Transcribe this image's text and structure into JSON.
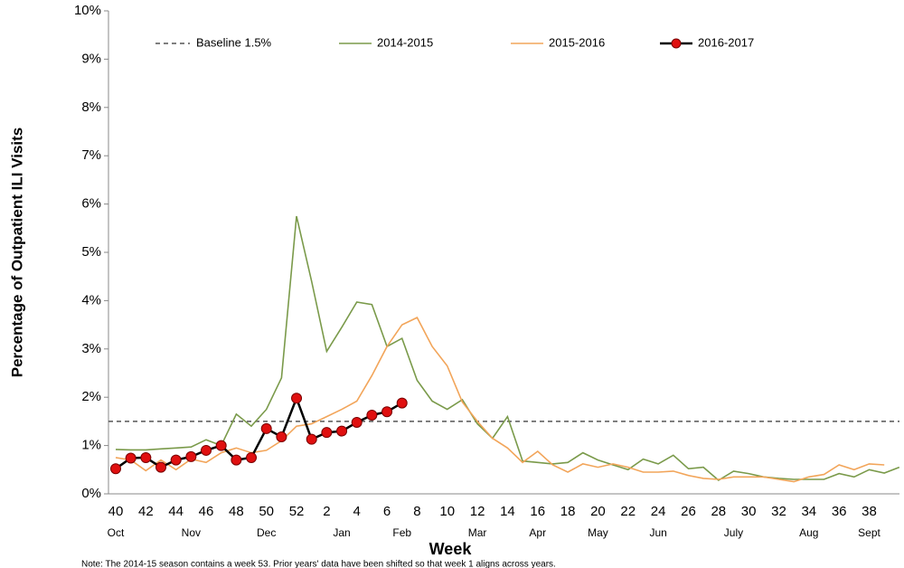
{
  "chart_data": {
    "type": "line",
    "y_label": "Percentage of Outpatient ILI Visits",
    "x_label": "Week",
    "note": "Note: The 2014-15 season contains a week 53. Prior years' data have been shifted so that week 1 aligns across years.",
    "categories": [
      "40",
      null,
      "42",
      null,
      "44",
      null,
      "46",
      null,
      "48",
      null,
      "50",
      null,
      "52",
      null,
      "2",
      null,
      "4",
      null,
      "6",
      null,
      "8",
      null,
      "10",
      null,
      "12",
      null,
      "14",
      null,
      "16",
      null,
      "18",
      null,
      "20",
      null,
      "22",
      null,
      "24",
      null,
      "26",
      null,
      "28",
      null,
      "30",
      null,
      "32",
      null,
      "34",
      null,
      "36",
      null,
      "38",
      null,
      null
    ],
    "months": [
      "Oct",
      null,
      null,
      null,
      null,
      "Nov",
      null,
      null,
      null,
      null,
      "Dec",
      null,
      null,
      null,
      null,
      "Jan",
      null,
      null,
      null,
      "Feb",
      null,
      null,
      null,
      null,
      "Mar",
      null,
      null,
      null,
      "Apr",
      null,
      null,
      null,
      "May",
      null,
      null,
      null,
      "Jun",
      null,
      null,
      null,
      null,
      "July",
      null,
      null,
      null,
      null,
      "Aug",
      null,
      null,
      null,
      "Sept",
      null,
      null
    ],
    "ylim": [
      0,
      10
    ],
    "yticks": [
      {
        "value": 0,
        "label": "0%"
      },
      {
        "value": 1,
        "label": "1%"
      },
      {
        "value": 2,
        "label": "2%"
      },
      {
        "value": 3,
        "label": "3%"
      },
      {
        "value": 4,
        "label": "4%"
      },
      {
        "value": 5,
        "label": "5%"
      },
      {
        "value": 6,
        "label": "6%"
      },
      {
        "value": 7,
        "label": "7%"
      },
      {
        "value": 8,
        "label": "8%"
      },
      {
        "value": 9,
        "label": "9%"
      },
      {
        "value": 10,
        "label": "10%"
      }
    ],
    "grid": false,
    "baseline": {
      "name": "Baseline 1.5%",
      "value": 1.5,
      "color": "#555555"
    },
    "series": [
      {
        "name": "2014-2015",
        "color": "#7a9a4a",
        "marker": false,
        "values": [
          0.92,
          0.91,
          0.91,
          0.93,
          0.95,
          0.97,
          1.12,
          1.0,
          1.65,
          1.4,
          1.75,
          2.4,
          5.75,
          4.4,
          2.95,
          3.45,
          3.97,
          3.92,
          3.05,
          3.22,
          2.35,
          1.92,
          1.75,
          1.95,
          1.45,
          1.15,
          1.6,
          0.68,
          0.65,
          0.62,
          0.65,
          0.85,
          0.7,
          0.6,
          0.5,
          0.72,
          0.62,
          0.8,
          0.52,
          0.55,
          0.28,
          0.47,
          0.42,
          0.35,
          0.32,
          0.3,
          0.3,
          0.3,
          0.42,
          0.35,
          0.5,
          0.43,
          0.55
        ]
      },
      {
        "name": "2015-2016",
        "color": "#f2a55a",
        "marker": false,
        "values": [
          0.75,
          0.7,
          0.48,
          0.7,
          0.5,
          0.72,
          0.65,
          0.85,
          0.95,
          0.85,
          0.9,
          1.1,
          1.4,
          1.45,
          1.6,
          1.75,
          1.92,
          2.45,
          3.05,
          3.5,
          3.65,
          3.05,
          2.65,
          1.9,
          1.5,
          1.15,
          0.95,
          0.65,
          0.88,
          0.6,
          0.45,
          0.62,
          0.55,
          0.62,
          0.55,
          0.45,
          0.45,
          0.47,
          0.38,
          0.32,
          0.3,
          0.35,
          0.35,
          0.35,
          0.3,
          0.25,
          0.35,
          0.4,
          0.6,
          0.5,
          0.62,
          0.6,
          null
        ]
      },
      {
        "name": "2016-2017",
        "color": "#000000",
        "marker_color": "#e01010",
        "marker": true,
        "values": [
          0.52,
          0.74,
          0.75,
          0.55,
          0.7,
          0.77,
          0.9,
          1.0,
          0.7,
          0.75,
          1.35,
          1.18,
          1.98,
          1.13,
          1.27,
          1.3,
          1.48,
          1.63,
          1.7,
          1.88,
          null,
          null,
          null,
          null,
          null,
          null,
          null,
          null,
          null,
          null,
          null,
          null,
          null,
          null,
          null,
          null,
          null,
          null,
          null,
          null,
          null,
          null,
          null,
          null,
          null,
          null,
          null,
          null,
          null,
          null,
          null,
          null,
          null
        ]
      }
    ]
  }
}
